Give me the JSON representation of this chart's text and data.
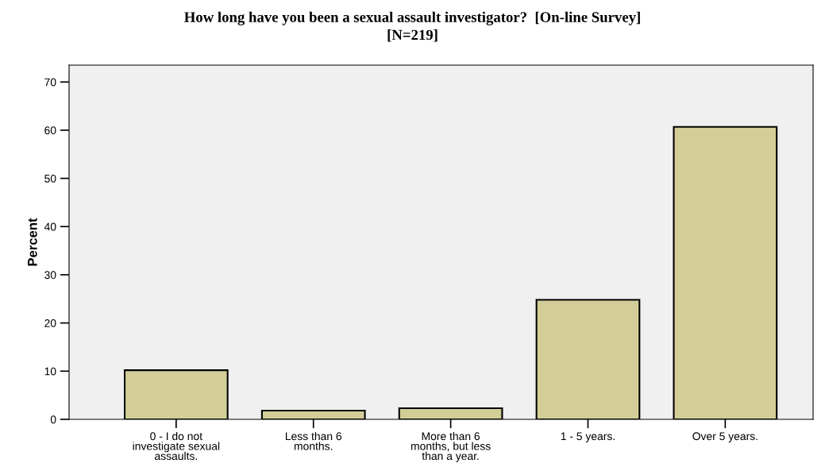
{
  "chart_data": {
    "type": "bar",
    "title": "How long have you been a sexual assault investigator?  [On-line Survey]\n[N=219]",
    "ylabel": "Percent",
    "categories": [
      "0 - I do not\ninvestigate sexual\nassaults.",
      "Less than 6\nmonths.",
      "More than 6\nmonths, but less\nthan a year.",
      "1 - 5 years.",
      "Over 5 years."
    ],
    "values": [
      10.2,
      1.8,
      2.3,
      24.8,
      60.7
    ],
    "color": "#d3ce98",
    "ylim": [
      0,
      73.5
    ],
    "yticks": [
      0,
      10,
      20,
      30,
      40,
      50,
      60,
      70
    ],
    "grid": false
  }
}
